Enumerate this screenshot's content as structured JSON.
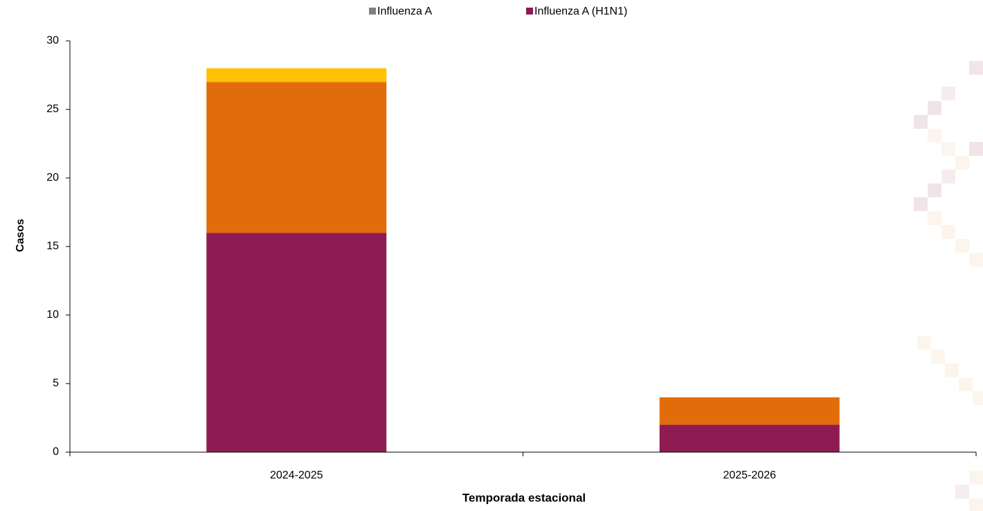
{
  "chart_data": {
    "type": "stacked_bar",
    "categories": [
      "2024-2025",
      "2025-2026"
    ],
    "series": [
      {
        "name": "Influenza A",
        "color": "#808080",
        "values": [
          0,
          0
        ]
      },
      {
        "name": "Influenza A (H1N1)",
        "color": "#8e1b52",
        "values": [
          16,
          2
        ]
      },
      {
        "color": "#e36c0a",
        "values": [
          11,
          2
        ]
      },
      {
        "color": "#ffc000",
        "values": [
          1,
          0
        ]
      }
    ],
    "ylim": [
      0,
      30
    ],
    "yticks": [
      0,
      5,
      10,
      15,
      20,
      25,
      30
    ],
    "x_label": "Temporada estacional",
    "y_label": "Casos",
    "legend": "top",
    "grid": false
  }
}
